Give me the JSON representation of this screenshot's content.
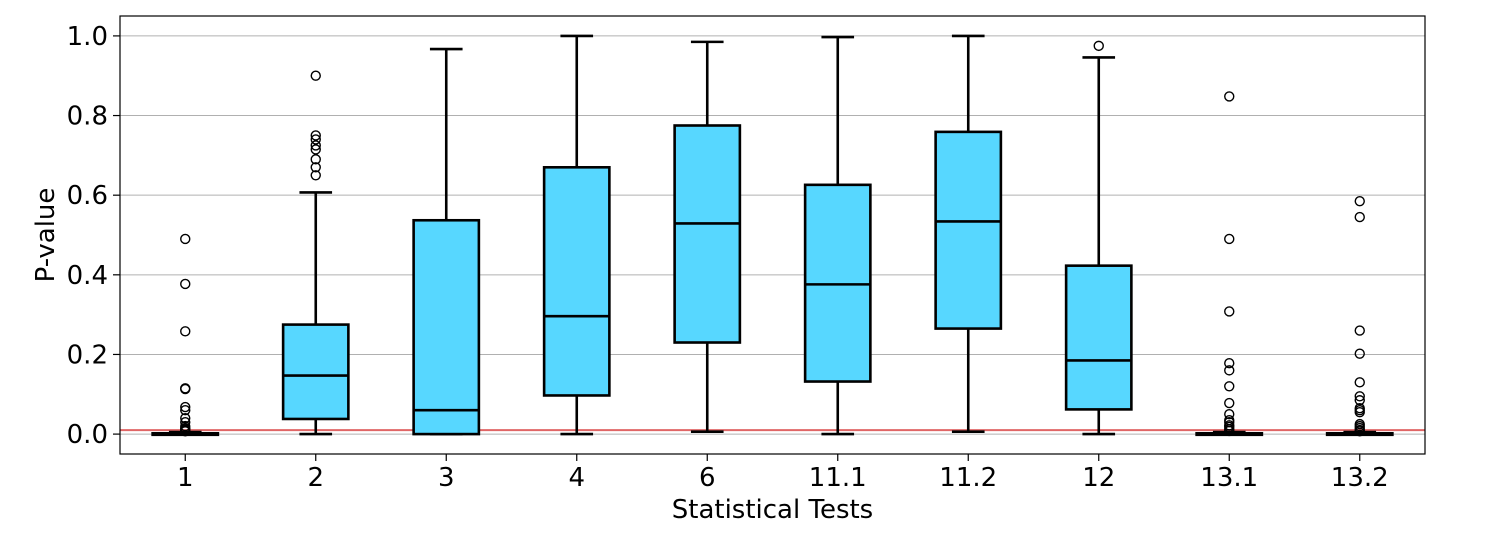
{
  "chart_data": {
    "type": "boxplot",
    "title": "",
    "xlabel": "Statistical Tests",
    "ylabel": "P-value",
    "ylim": [
      -0.05,
      1.05
    ],
    "yticks": [
      0.0,
      0.2,
      0.4,
      0.6,
      0.8,
      1.0
    ],
    "ytick_labels": [
      "0.0",
      "0.2",
      "0.4",
      "0.6",
      "0.8",
      "1.0"
    ],
    "grid": "horizontal",
    "threshold_line": {
      "value": 0.01,
      "color": "#e06666"
    },
    "box_color": "#57d7ff",
    "categories": [
      "1",
      "2",
      "3",
      "4",
      "6",
      "11.1",
      "11.2",
      "12",
      "13.1",
      "13.2"
    ],
    "boxes": [
      {
        "label": "1",
        "whisker_low": 0.0,
        "q1": 0.0,
        "median": 0.0,
        "q3": 0.002,
        "whisker_high": 0.005,
        "outliers": [
          0.49,
          0.377,
          0.258,
          0.115,
          0.113,
          0.068,
          0.06,
          0.04,
          0.03,
          0.02,
          0.015,
          0.012,
          0.009,
          0.007
        ]
      },
      {
        "label": "2",
        "whisker_low": 0.0,
        "q1": 0.038,
        "median": 0.147,
        "q3": 0.275,
        "whisker_high": 0.607,
        "outliers": [
          0.9,
          0.75,
          0.74,
          0.725,
          0.715,
          0.69,
          0.67,
          0.65
        ]
      },
      {
        "label": "3",
        "whisker_low": 0.0,
        "q1": 0.0,
        "median": 0.06,
        "q3": 0.537,
        "whisker_high": 0.967,
        "outliers": []
      },
      {
        "label": "4",
        "whisker_low": 0.0,
        "q1": 0.097,
        "median": 0.296,
        "q3": 0.67,
        "whisker_high": 1.0,
        "outliers": []
      },
      {
        "label": "6",
        "whisker_low": 0.006,
        "q1": 0.23,
        "median": 0.529,
        "q3": 0.775,
        "whisker_high": 0.985,
        "outliers": []
      },
      {
        "label": "11.1",
        "whisker_low": 0.0,
        "q1": 0.132,
        "median": 0.376,
        "q3": 0.626,
        "whisker_high": 0.997,
        "outliers": []
      },
      {
        "label": "11.2",
        "whisker_low": 0.006,
        "q1": 0.265,
        "median": 0.534,
        "q3": 0.759,
        "whisker_high": 1.0,
        "outliers": []
      },
      {
        "label": "12",
        "whisker_low": 0.0,
        "q1": 0.062,
        "median": 0.185,
        "q3": 0.423,
        "whisker_high": 0.946,
        "outliers": [
          0.975
        ]
      },
      {
        "label": "13.1",
        "whisker_low": 0.0,
        "q1": 0.0,
        "median": 0.0,
        "q3": 0.002,
        "whisker_high": 0.005,
        "outliers": [
          0.848,
          0.49,
          0.308,
          0.178,
          0.16,
          0.12,
          0.078,
          0.05,
          0.035,
          0.03,
          0.022,
          0.018,
          0.012,
          0.008
        ]
      },
      {
        "label": "13.2",
        "whisker_low": 0.0,
        "q1": 0.0,
        "median": 0.0,
        "q3": 0.002,
        "whisker_high": 0.005,
        "outliers": [
          0.585,
          0.545,
          0.26,
          0.202,
          0.13,
          0.095,
          0.085,
          0.065,
          0.06,
          0.055,
          0.025,
          0.02,
          0.015,
          0.01,
          0.007
        ]
      }
    ]
  }
}
